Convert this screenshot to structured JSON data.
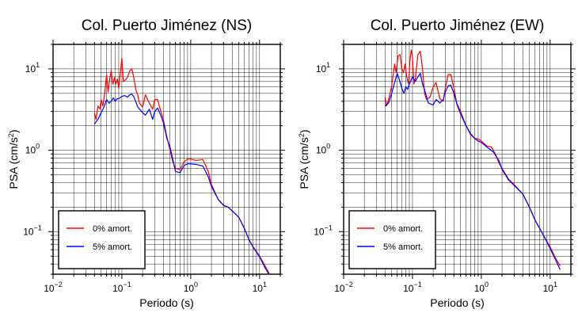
{
  "chart_data": [
    {
      "type": "line",
      "title": "Col. Puerto Jiménez (NS)",
      "xlabel": "Periodo (s)",
      "ylabel": "PSA (cm/s",
      "ylabel_sup": "2",
      "ylabel_end": ")",
      "x_scale": "log",
      "y_scale": "log",
      "xlim": [
        0.01,
        20
      ],
      "ylim": [
        0.03,
        20
      ],
      "grid": true,
      "legend_position": "bottom-left",
      "x_ticks": [
        {
          "base": "10",
          "exp": "−2"
        },
        {
          "base": "10",
          "exp": "−1"
        },
        {
          "base": "10",
          "exp": "0"
        },
        {
          "base": "10",
          "exp": "1"
        }
      ],
      "y_ticks": [
        {
          "base": "10",
          "exp": "−1"
        },
        {
          "base": "10",
          "exp": "0"
        },
        {
          "base": "10",
          "exp": "1"
        }
      ],
      "series": [
        {
          "name": "0% amort.",
          "color": "#ff0000",
          "x": [
            0.04,
            0.042,
            0.045,
            0.048,
            0.05,
            0.053,
            0.056,
            0.06,
            0.063,
            0.066,
            0.07,
            0.074,
            0.078,
            0.082,
            0.086,
            0.09,
            0.095,
            0.1,
            0.105,
            0.11,
            0.12,
            0.13,
            0.14,
            0.15,
            0.16,
            0.17,
            0.18,
            0.2,
            0.22,
            0.25,
            0.28,
            0.3,
            0.33,
            0.36,
            0.4,
            0.44,
            0.5,
            0.55,
            0.6,
            0.7,
            0.8,
            0.9,
            1.0,
            1.2,
            1.5,
            1.8,
            2.0,
            2.5,
            3.0,
            3.5,
            4.0,
            5.0,
            6.0,
            7.0,
            8.0,
            10.0,
            12.0,
            14.0
          ],
          "y": [
            2.9,
            2.4,
            3.5,
            3.2,
            4.2,
            3.5,
            4.8,
            8.5,
            5.2,
            7.2,
            9.5,
            6.5,
            7.8,
            6.5,
            7.5,
            5.8,
            9.0,
            13.5,
            7.0,
            7.2,
            7.8,
            9.5,
            10.0,
            7.5,
            5.5,
            4.8,
            3.8,
            3.4,
            4.8,
            3.8,
            3.2,
            4.2,
            4.2,
            3.2,
            2.4,
            1.6,
            1.0,
            0.72,
            0.6,
            0.58,
            0.72,
            0.78,
            0.78,
            0.75,
            0.77,
            0.55,
            0.38,
            0.25,
            0.21,
            0.2,
            0.18,
            0.15,
            0.11,
            0.08,
            0.066,
            0.05,
            0.038,
            0.03
          ]
        },
        {
          "name": "5% amort.",
          "color": "#0000ff",
          "x": [
            0.04,
            0.045,
            0.05,
            0.055,
            0.06,
            0.065,
            0.07,
            0.075,
            0.08,
            0.085,
            0.09,
            0.1,
            0.11,
            0.12,
            0.13,
            0.14,
            0.15,
            0.17,
            0.2,
            0.22,
            0.25,
            0.28,
            0.3,
            0.33,
            0.36,
            0.4,
            0.45,
            0.5,
            0.6,
            0.7,
            0.8,
            0.9,
            1.0,
            1.2,
            1.5,
            1.8,
            2.0,
            2.5,
            3.0,
            3.5,
            4.0,
            5.0,
            6.0,
            7.0,
            8.0,
            10.0,
            12.0,
            14.0
          ],
          "y": [
            2.1,
            2.4,
            2.9,
            3.4,
            4.2,
            3.8,
            4.0,
            4.4,
            4.0,
            4.3,
            4.3,
            4.6,
            4.7,
            4.5,
            4.8,
            4.9,
            4.5,
            3.4,
            2.9,
            2.7,
            3.2,
            2.4,
            3.0,
            3.3,
            2.8,
            2.2,
            1.4,
            1.1,
            0.55,
            0.53,
            0.65,
            0.68,
            0.68,
            0.67,
            0.64,
            0.47,
            0.36,
            0.25,
            0.21,
            0.2,
            0.18,
            0.15,
            0.11,
            0.08,
            0.065,
            0.049,
            0.036,
            0.029
          ]
        }
      ]
    },
    {
      "type": "line",
      "title": "Col. Puerto Jiménez (EW)",
      "xlabel": "Periodo (s)",
      "ylabel": "PSA (cm/s",
      "ylabel_sup": "2",
      "ylabel_end": ")",
      "x_scale": "log",
      "y_scale": "log",
      "xlim": [
        0.01,
        20
      ],
      "ylim": [
        0.03,
        20
      ],
      "grid": true,
      "legend_position": "bottom-left",
      "x_ticks": [
        {
          "base": "10",
          "exp": "−2"
        },
        {
          "base": "10",
          "exp": "−1"
        },
        {
          "base": "10",
          "exp": "0"
        },
        {
          "base": "10",
          "exp": "1"
        }
      ],
      "y_ticks": [
        {
          "base": "10",
          "exp": "−1"
        },
        {
          "base": "10",
          "exp": "0"
        },
        {
          "base": "10",
          "exp": "1"
        }
      ],
      "series": [
        {
          "name": "0% amort.",
          "color": "#ff0000",
          "x": [
            0.04,
            0.042,
            0.045,
            0.05,
            0.055,
            0.058,
            0.062,
            0.066,
            0.07,
            0.074,
            0.078,
            0.083,
            0.088,
            0.092,
            0.096,
            0.1,
            0.105,
            0.11,
            0.12,
            0.13,
            0.14,
            0.15,
            0.16,
            0.18,
            0.2,
            0.22,
            0.25,
            0.28,
            0.3,
            0.33,
            0.36,
            0.4,
            0.44,
            0.5,
            0.6,
            0.7,
            0.8,
            0.9,
            1.0,
            1.2,
            1.4,
            1.6,
            1.8,
            2.0,
            2.5,
            3.0,
            4.0,
            5.0,
            6.0,
            8.0,
            10.0,
            12.0,
            14.0
          ],
          "y": [
            4.5,
            3.5,
            4.2,
            6.2,
            11.5,
            9.0,
            14.5,
            15.0,
            10.0,
            9.0,
            11.5,
            7.8,
            6.5,
            13.0,
            17.0,
            14.0,
            6.5,
            7.5,
            15.0,
            16.5,
            10.0,
            5.0,
            4.2,
            4.5,
            6.0,
            6.8,
            4.3,
            4.0,
            5.8,
            8.5,
            8.5,
            5.8,
            3.8,
            3.0,
            2.0,
            1.55,
            1.4,
            1.38,
            1.3,
            1.13,
            1.1,
            0.9,
            0.7,
            0.6,
            0.44,
            0.38,
            0.29,
            0.2,
            0.14,
            0.09,
            0.065,
            0.047,
            0.038
          ]
        },
        {
          "name": "5% amort.",
          "color": "#0000ff",
          "x": [
            0.04,
            0.045,
            0.05,
            0.055,
            0.06,
            0.065,
            0.07,
            0.075,
            0.08,
            0.085,
            0.09,
            0.1,
            0.11,
            0.12,
            0.13,
            0.14,
            0.15,
            0.17,
            0.2,
            0.22,
            0.25,
            0.28,
            0.3,
            0.33,
            0.36,
            0.4,
            0.45,
            0.5,
            0.6,
            0.7,
            0.8,
            0.9,
            1.0,
            1.2,
            1.5,
            1.8,
            2.0,
            2.5,
            3.0,
            4.0,
            5.0,
            6.0,
            8.0,
            10.0,
            12.0,
            14.0
          ],
          "y": [
            3.5,
            3.8,
            5.0,
            6.8,
            8.8,
            7.2,
            5.8,
            5.0,
            6.0,
            5.6,
            6.5,
            8.0,
            7.0,
            8.0,
            8.8,
            6.5,
            5.5,
            3.8,
            3.6,
            4.2,
            3.8,
            4.2,
            5.2,
            6.2,
            6.3,
            5.0,
            3.5,
            2.8,
            2.0,
            1.6,
            1.4,
            1.3,
            1.25,
            1.1,
            0.95,
            0.75,
            0.58,
            0.43,
            0.37,
            0.29,
            0.2,
            0.14,
            0.09,
            0.062,
            0.045,
            0.034
          ]
        }
      ]
    }
  ]
}
